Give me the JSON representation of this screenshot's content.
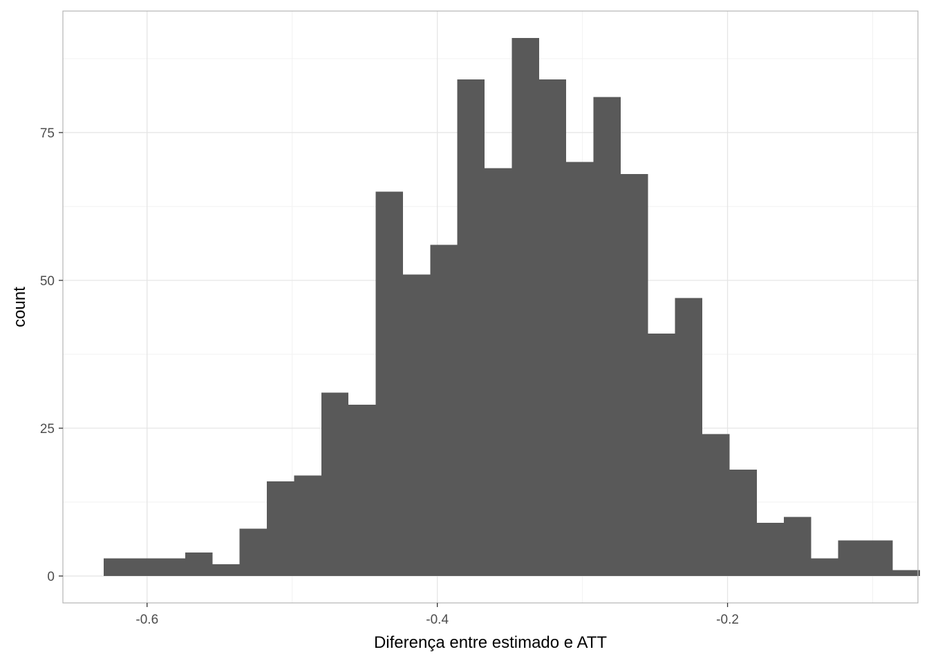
{
  "chart_data": {
    "type": "bar",
    "subtype": "histogram",
    "title": "",
    "xlabel": "Diferença entre estimado e ATT",
    "ylabel": "count",
    "xlim": [
      -0.658,
      -0.0688
    ],
    "ylim": [
      -4.55,
      95.55
    ],
    "x_ticks": [
      -0.6,
      -0.4,
      -0.2
    ],
    "x_tick_labels": [
      "-0.6",
      "-0.4",
      "-0.2"
    ],
    "y_ticks": [
      0,
      25,
      50,
      75
    ],
    "y_tick_labels": [
      "0",
      "25",
      "50",
      "75"
    ],
    "grid": true,
    "bar_color": "#595959",
    "bin_width": 0.01875,
    "bins": [
      {
        "x0": -0.6299,
        "x1": -0.6112,
        "count": 3
      },
      {
        "x0": -0.6112,
        "x1": -0.5924,
        "count": 3
      },
      {
        "x0": -0.5924,
        "x1": -0.5737,
        "count": 3
      },
      {
        "x0": -0.5737,
        "x1": -0.5549,
        "count": 4
      },
      {
        "x0": -0.5549,
        "x1": -0.5362,
        "count": 2
      },
      {
        "x0": -0.5362,
        "x1": -0.5174,
        "count": 8
      },
      {
        "x0": -0.5174,
        "x1": -0.4987,
        "count": 16
      },
      {
        "x0": -0.4987,
        "x1": -0.4799,
        "count": 17
      },
      {
        "x0": -0.4799,
        "x1": -0.4612,
        "count": 31
      },
      {
        "x0": -0.4612,
        "x1": -0.4424,
        "count": 29
      },
      {
        "x0": -0.4424,
        "x1": -0.4237,
        "count": 65
      },
      {
        "x0": -0.4237,
        "x1": -0.4049,
        "count": 51
      },
      {
        "x0": -0.4049,
        "x1": -0.3862,
        "count": 56
      },
      {
        "x0": -0.3862,
        "x1": -0.3674,
        "count": 84
      },
      {
        "x0": -0.3674,
        "x1": -0.3487,
        "count": 69
      },
      {
        "x0": -0.3487,
        "x1": -0.3299,
        "count": 91
      },
      {
        "x0": -0.3299,
        "x1": -0.3112,
        "count": 84
      },
      {
        "x0": -0.3112,
        "x1": -0.2924,
        "count": 70
      },
      {
        "x0": -0.2924,
        "x1": -0.2737,
        "count": 81
      },
      {
        "x0": -0.2737,
        "x1": -0.2549,
        "count": 68
      },
      {
        "x0": -0.2549,
        "x1": -0.2362,
        "count": 41
      },
      {
        "x0": -0.2362,
        "x1": -0.2174,
        "count": 47
      },
      {
        "x0": -0.2174,
        "x1": -0.1987,
        "count": 24
      },
      {
        "x0": -0.1987,
        "x1": -0.1799,
        "count": 18
      },
      {
        "x0": -0.1799,
        "x1": -0.1612,
        "count": 9
      },
      {
        "x0": -0.1612,
        "x1": -0.1424,
        "count": 10
      },
      {
        "x0": -0.1424,
        "x1": -0.1237,
        "count": 3
      },
      {
        "x0": -0.1237,
        "x1": -0.1049,
        "count": 6
      },
      {
        "x0": -0.1049,
        "x1": -0.0862,
        "count": 6
      },
      {
        "x0": -0.0862,
        "x1": -0.0674,
        "count": 1
      }
    ]
  }
}
